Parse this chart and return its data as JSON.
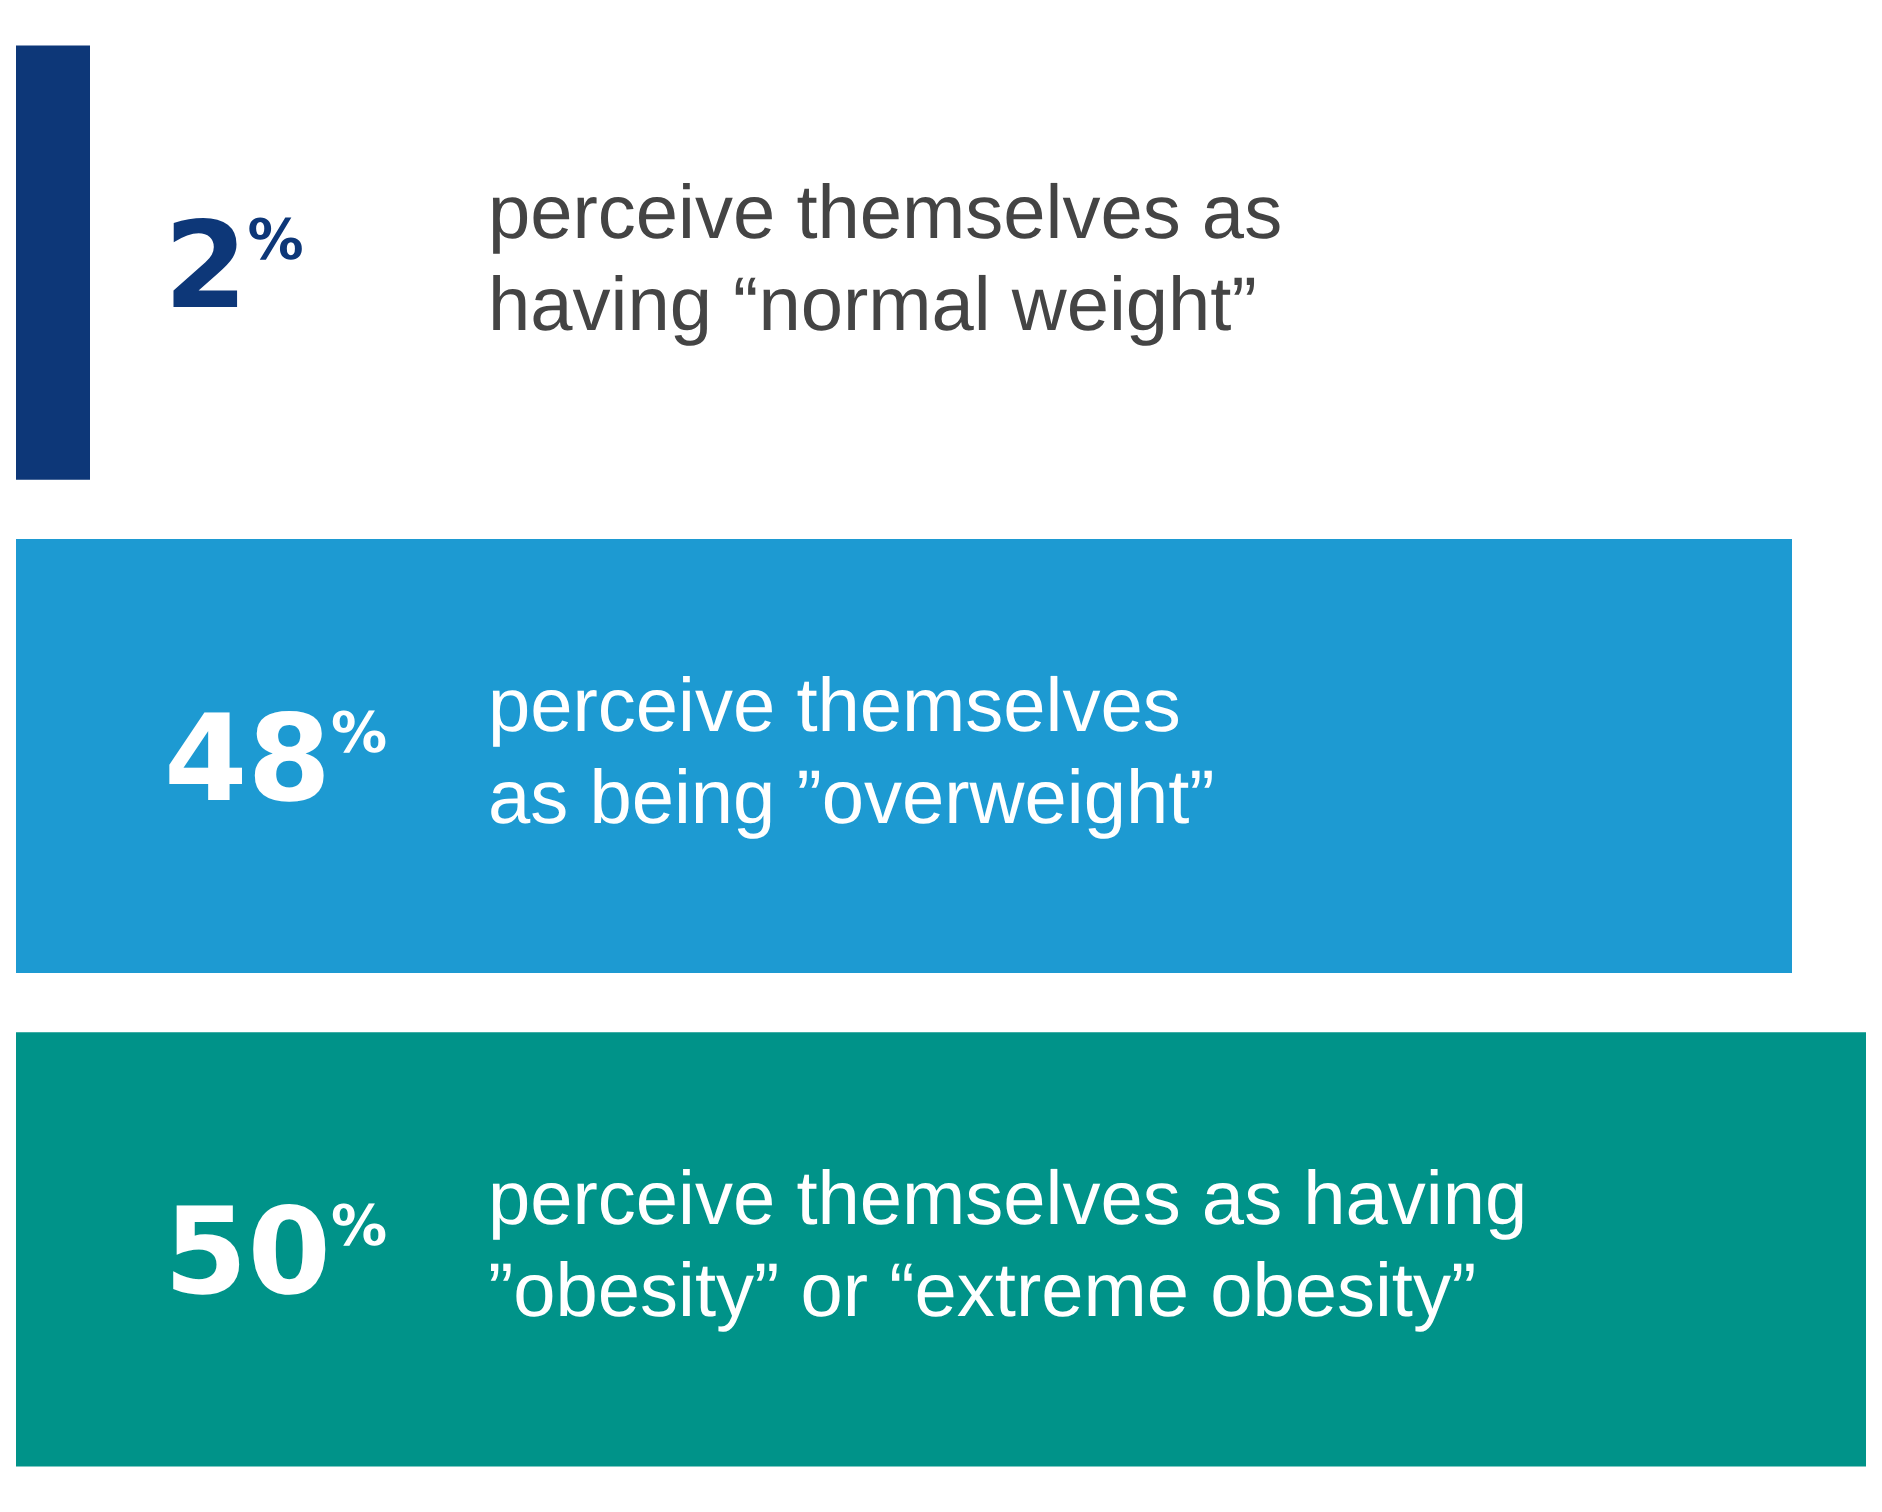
{
  "chart_data": {
    "type": "bar",
    "orientation": "horizontal",
    "categories": [
      "perceive themselves as\nhaving “normal weight”",
      "perceive themselves\nas being ”overweight”",
      "perceive themselves as having\n”obesity” or “extreme obesity”"
    ],
    "values": [
      2,
      48,
      50
    ],
    "colors": [
      "#0d3778",
      "#1d9ad2",
      "#009389"
    ],
    "value_labels": [
      "2$^{%}$",
      "48$^{%}$",
      "50$^{%}$"
    ],
    "xlim": [
      0,
      50
    ],
    "tick_labels": false
  }
}
